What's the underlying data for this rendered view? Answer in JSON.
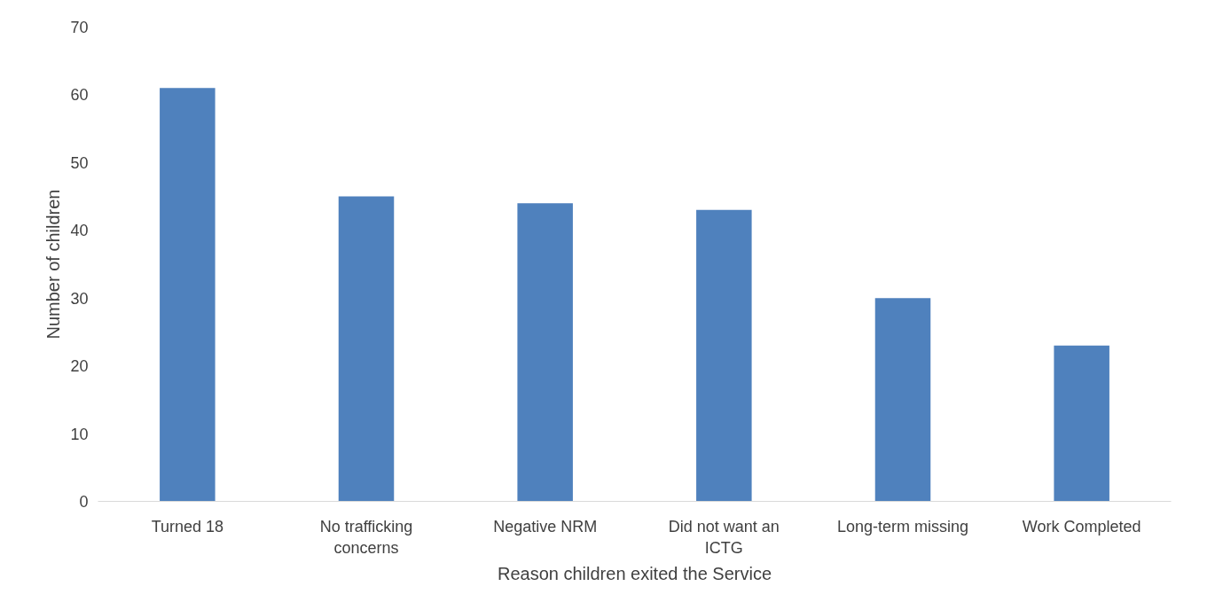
{
  "chart_data": {
    "type": "bar",
    "xlabel": "Reason children exited the Service",
    "ylabel": "Number of children",
    "categories": [
      "Turned 18",
      "No trafficking concerns",
      "Negative NRM",
      "Did not want an ICTG",
      "Long-term missing",
      "Work Completed"
    ],
    "values": [
      61,
      45,
      44,
      43,
      30,
      23
    ],
    "color": "#4f81bd",
    "ylim": [
      0,
      70
    ],
    "yticks": [
      0,
      10,
      20,
      30,
      40,
      50,
      60,
      70
    ],
    "grid": false
  }
}
